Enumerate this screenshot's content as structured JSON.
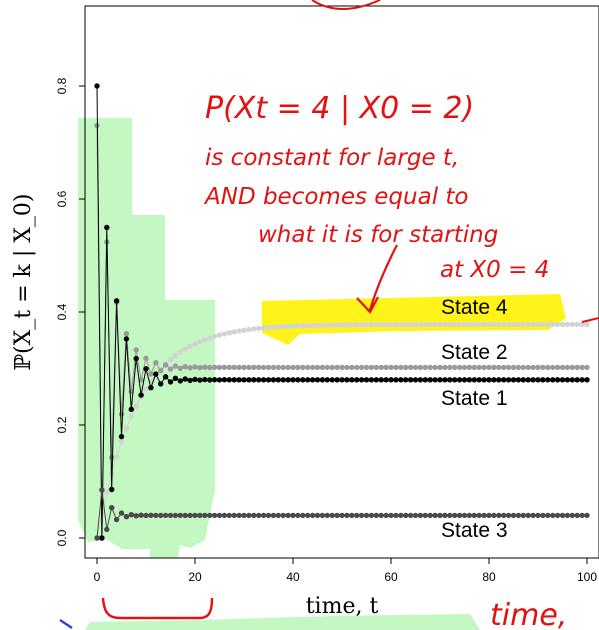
{
  "chart_data": {
    "type": "line",
    "xlabel": "time, t",
    "ylabel": "ℙ(X_t = k | X_0)",
    "xlim": [
      0,
      100
    ],
    "ylim": [
      0,
      0.8
    ],
    "x_ticks": [
      "0",
      "20",
      "40",
      "60",
      "80",
      "100"
    ],
    "y_ticks": [
      "0.0",
      "0.2",
      "0.4",
      "0.6",
      "0.8"
    ],
    "grid": false,
    "markers": "filled-circles",
    "series": [
      {
        "name": "State 4",
        "color": "#d3d3d3",
        "start": 0.0,
        "limit": 0.378,
        "decay": 0.12,
        "oscillating": false
      },
      {
        "name": "State 2",
        "color": "#9a9a9a",
        "start": 0.73,
        "limit": 0.302,
        "decay": 0.72,
        "oscillating": true
      },
      {
        "name": "State 1",
        "color": "#000000",
        "start": 0.8,
        "limit": 0.28,
        "decay": 0.72,
        "oscillating": true
      },
      {
        "name": "State 3",
        "color": "#4a4a4a",
        "start": 0.0,
        "limit": 0.04,
        "decay": 0.55,
        "oscillating": true
      }
    ],
    "annotations": {
      "handwritten_lines": [
        "P(Xt = 4 | X0 = 2)",
        "is constant for large t,",
        "AND becomes equal to",
        "what it is for starting",
        "at X0 = 4"
      ],
      "handwritten_xlabel": "time,",
      "highlight_yellow": "State 4",
      "highlight_green": "transient period (t = 0 to about 23)",
      "highlight_color_yellow": "#fff200",
      "highlight_color_green": "#b9f7b9",
      "ink_color": "#e31212"
    }
  }
}
